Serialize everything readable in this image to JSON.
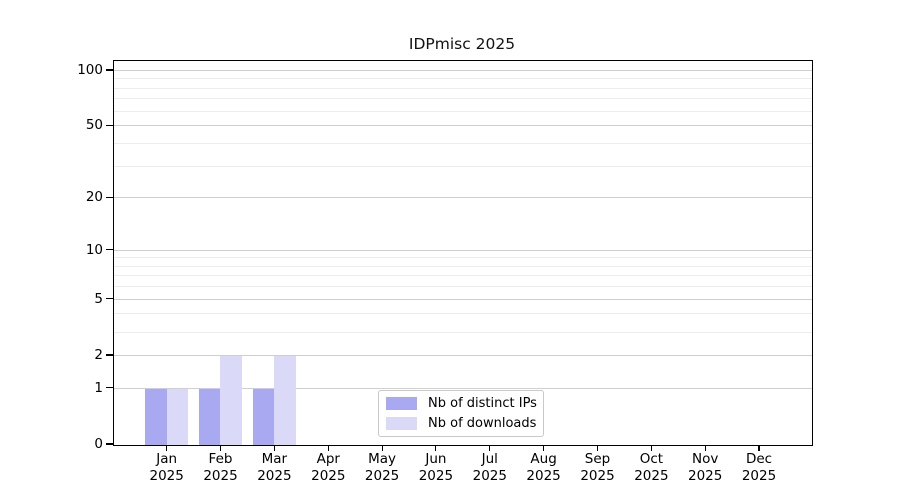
{
  "chart_data": {
    "type": "bar",
    "title": "IDPmisc 2025",
    "x_categories": [
      {
        "month": "Jan",
        "year": "2025"
      },
      {
        "month": "Feb",
        "year": "2025"
      },
      {
        "month": "Mar",
        "year": "2025"
      },
      {
        "month": "Apr",
        "year": "2025"
      },
      {
        "month": "May",
        "year": "2025"
      },
      {
        "month": "Jun",
        "year": "2025"
      },
      {
        "month": "Jul",
        "year": "2025"
      },
      {
        "month": "Aug",
        "year": "2025"
      },
      {
        "month": "Sep",
        "year": "2025"
      },
      {
        "month": "Oct",
        "year": "2025"
      },
      {
        "month": "Nov",
        "year": "2025"
      },
      {
        "month": "Dec",
        "year": "2025"
      }
    ],
    "series": [
      {
        "name": "Nb of distinct IPs",
        "color": "#a9a9f2",
        "values": [
          1,
          1,
          1,
          0,
          0,
          0,
          0,
          0,
          0,
          0,
          0,
          0
        ]
      },
      {
        "name": "Nb of downloads",
        "color": "#dadaf8",
        "values": [
          1,
          2,
          2,
          0,
          0,
          0,
          0,
          0,
          0,
          0,
          0,
          0
        ]
      }
    ],
    "yaxis": {
      "scale": "log10(1+y)",
      "ticks": [
        0,
        1,
        2,
        5,
        10,
        20,
        50,
        100
      ],
      "minor_ticks": [
        3,
        4,
        6,
        7,
        8,
        9,
        30,
        40,
        60,
        70,
        80,
        90
      ],
      "ylim": [
        0,
        113
      ]
    },
    "xlabel": "",
    "ylabel": "",
    "legend": {
      "position": "lower-center",
      "entries": [
        "Nb of distinct IPs",
        "Nb of downloads"
      ]
    },
    "style": {
      "background": "#ffffff",
      "text_color": "#000000",
      "spine_color": "#000000",
      "grid_major_color": "#cfcfcf",
      "grid_minor_color": "#ededed",
      "legend_border_color": "#c9c9c9"
    }
  }
}
